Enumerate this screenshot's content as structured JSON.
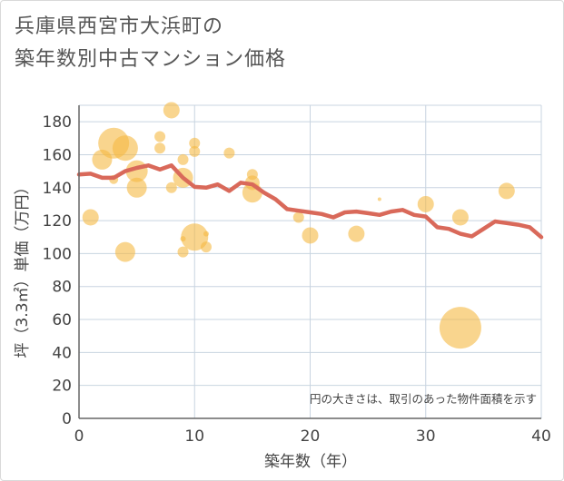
{
  "chart_data": {
    "type": "scatter",
    "title_lines": [
      "兵庫県西宮市大浜町の",
      "築年数別中古マンション価格"
    ],
    "xlabel": "築年数（年）",
    "ylabel": "坪（3.3㎡）単価（万円）",
    "note": "円の大きさは、取引のあった物件面積を示す",
    "xlim": [
      0,
      40
    ],
    "ylim": [
      0,
      190
    ],
    "xticks": [
      0,
      10,
      20,
      30,
      40
    ],
    "yticks": [
      0,
      20,
      40,
      60,
      80,
      100,
      120,
      140,
      160,
      180
    ],
    "grid": true,
    "colors": {
      "bubble": "#f5b942",
      "line": "#d9695a",
      "grid": "#c8d4e0",
      "axis": "#666666"
    },
    "bubbles": [
      {
        "x": 1,
        "y": 122,
        "r": 9
      },
      {
        "x": 2,
        "y": 157,
        "r": 11
      },
      {
        "x": 3,
        "y": 167,
        "r": 17
      },
      {
        "x": 3,
        "y": 145,
        "r": 5
      },
      {
        "x": 4,
        "y": 164,
        "r": 14
      },
      {
        "x": 4,
        "y": 101,
        "r": 11
      },
      {
        "x": 5,
        "y": 150,
        "r": 12
      },
      {
        "x": 5,
        "y": 140,
        "r": 11
      },
      {
        "x": 7,
        "y": 171,
        "r": 6
      },
      {
        "x": 7,
        "y": 164,
        "r": 6
      },
      {
        "x": 8,
        "y": 187,
        "r": 9
      },
      {
        "x": 8,
        "y": 140,
        "r": 6
      },
      {
        "x": 9,
        "y": 157,
        "r": 6
      },
      {
        "x": 9,
        "y": 146,
        "r": 11
      },
      {
        "x": 9,
        "y": 109,
        "r": 3
      },
      {
        "x": 9,
        "y": 101,
        "r": 6
      },
      {
        "x": 10,
        "y": 167,
        "r": 6
      },
      {
        "x": 10,
        "y": 162,
        "r": 6
      },
      {
        "x": 10,
        "y": 110,
        "r": 15
      },
      {
        "x": 11,
        "y": 112,
        "r": 3
      },
      {
        "x": 11,
        "y": 104,
        "r": 6
      },
      {
        "x": 13,
        "y": 161,
        "r": 6
      },
      {
        "x": 15,
        "y": 148,
        "r": 6
      },
      {
        "x": 15,
        "y": 143,
        "r": 8
      },
      {
        "x": 15,
        "y": 137,
        "r": 11
      },
      {
        "x": 19,
        "y": 122,
        "r": 6
      },
      {
        "x": 20,
        "y": 111,
        "r": 9
      },
      {
        "x": 24,
        "y": 112,
        "r": 9
      },
      {
        "x": 26,
        "y": 133,
        "r": 2
      },
      {
        "x": 30,
        "y": 130,
        "r": 9
      },
      {
        "x": 33,
        "y": 122,
        "r": 9
      },
      {
        "x": 33,
        "y": 55,
        "r": 23
      },
      {
        "x": 37,
        "y": 138,
        "r": 9
      }
    ],
    "trend": {
      "x": [
        0,
        1,
        2,
        3,
        4,
        5,
        6,
        7,
        8,
        9,
        10,
        11,
        12,
        13,
        14,
        15,
        16,
        17,
        18,
        19,
        20,
        21,
        22,
        23,
        24,
        25,
        26,
        27,
        28,
        29,
        30,
        31,
        32,
        33,
        34,
        35,
        36,
        37,
        38,
        39,
        40
      ],
      "y": [
        148,
        148.5,
        146,
        146,
        150,
        152,
        153.5,
        151,
        153.5,
        146,
        140.5,
        140,
        142,
        138,
        143,
        142,
        137,
        133,
        127,
        126,
        125,
        124,
        122,
        125,
        125.5,
        124.5,
        123.5,
        125.5,
        126.5,
        123.5,
        122.5,
        116,
        115,
        112,
        110.5,
        115,
        119.5,
        118.5,
        117.5,
        116,
        110
      ]
    }
  }
}
